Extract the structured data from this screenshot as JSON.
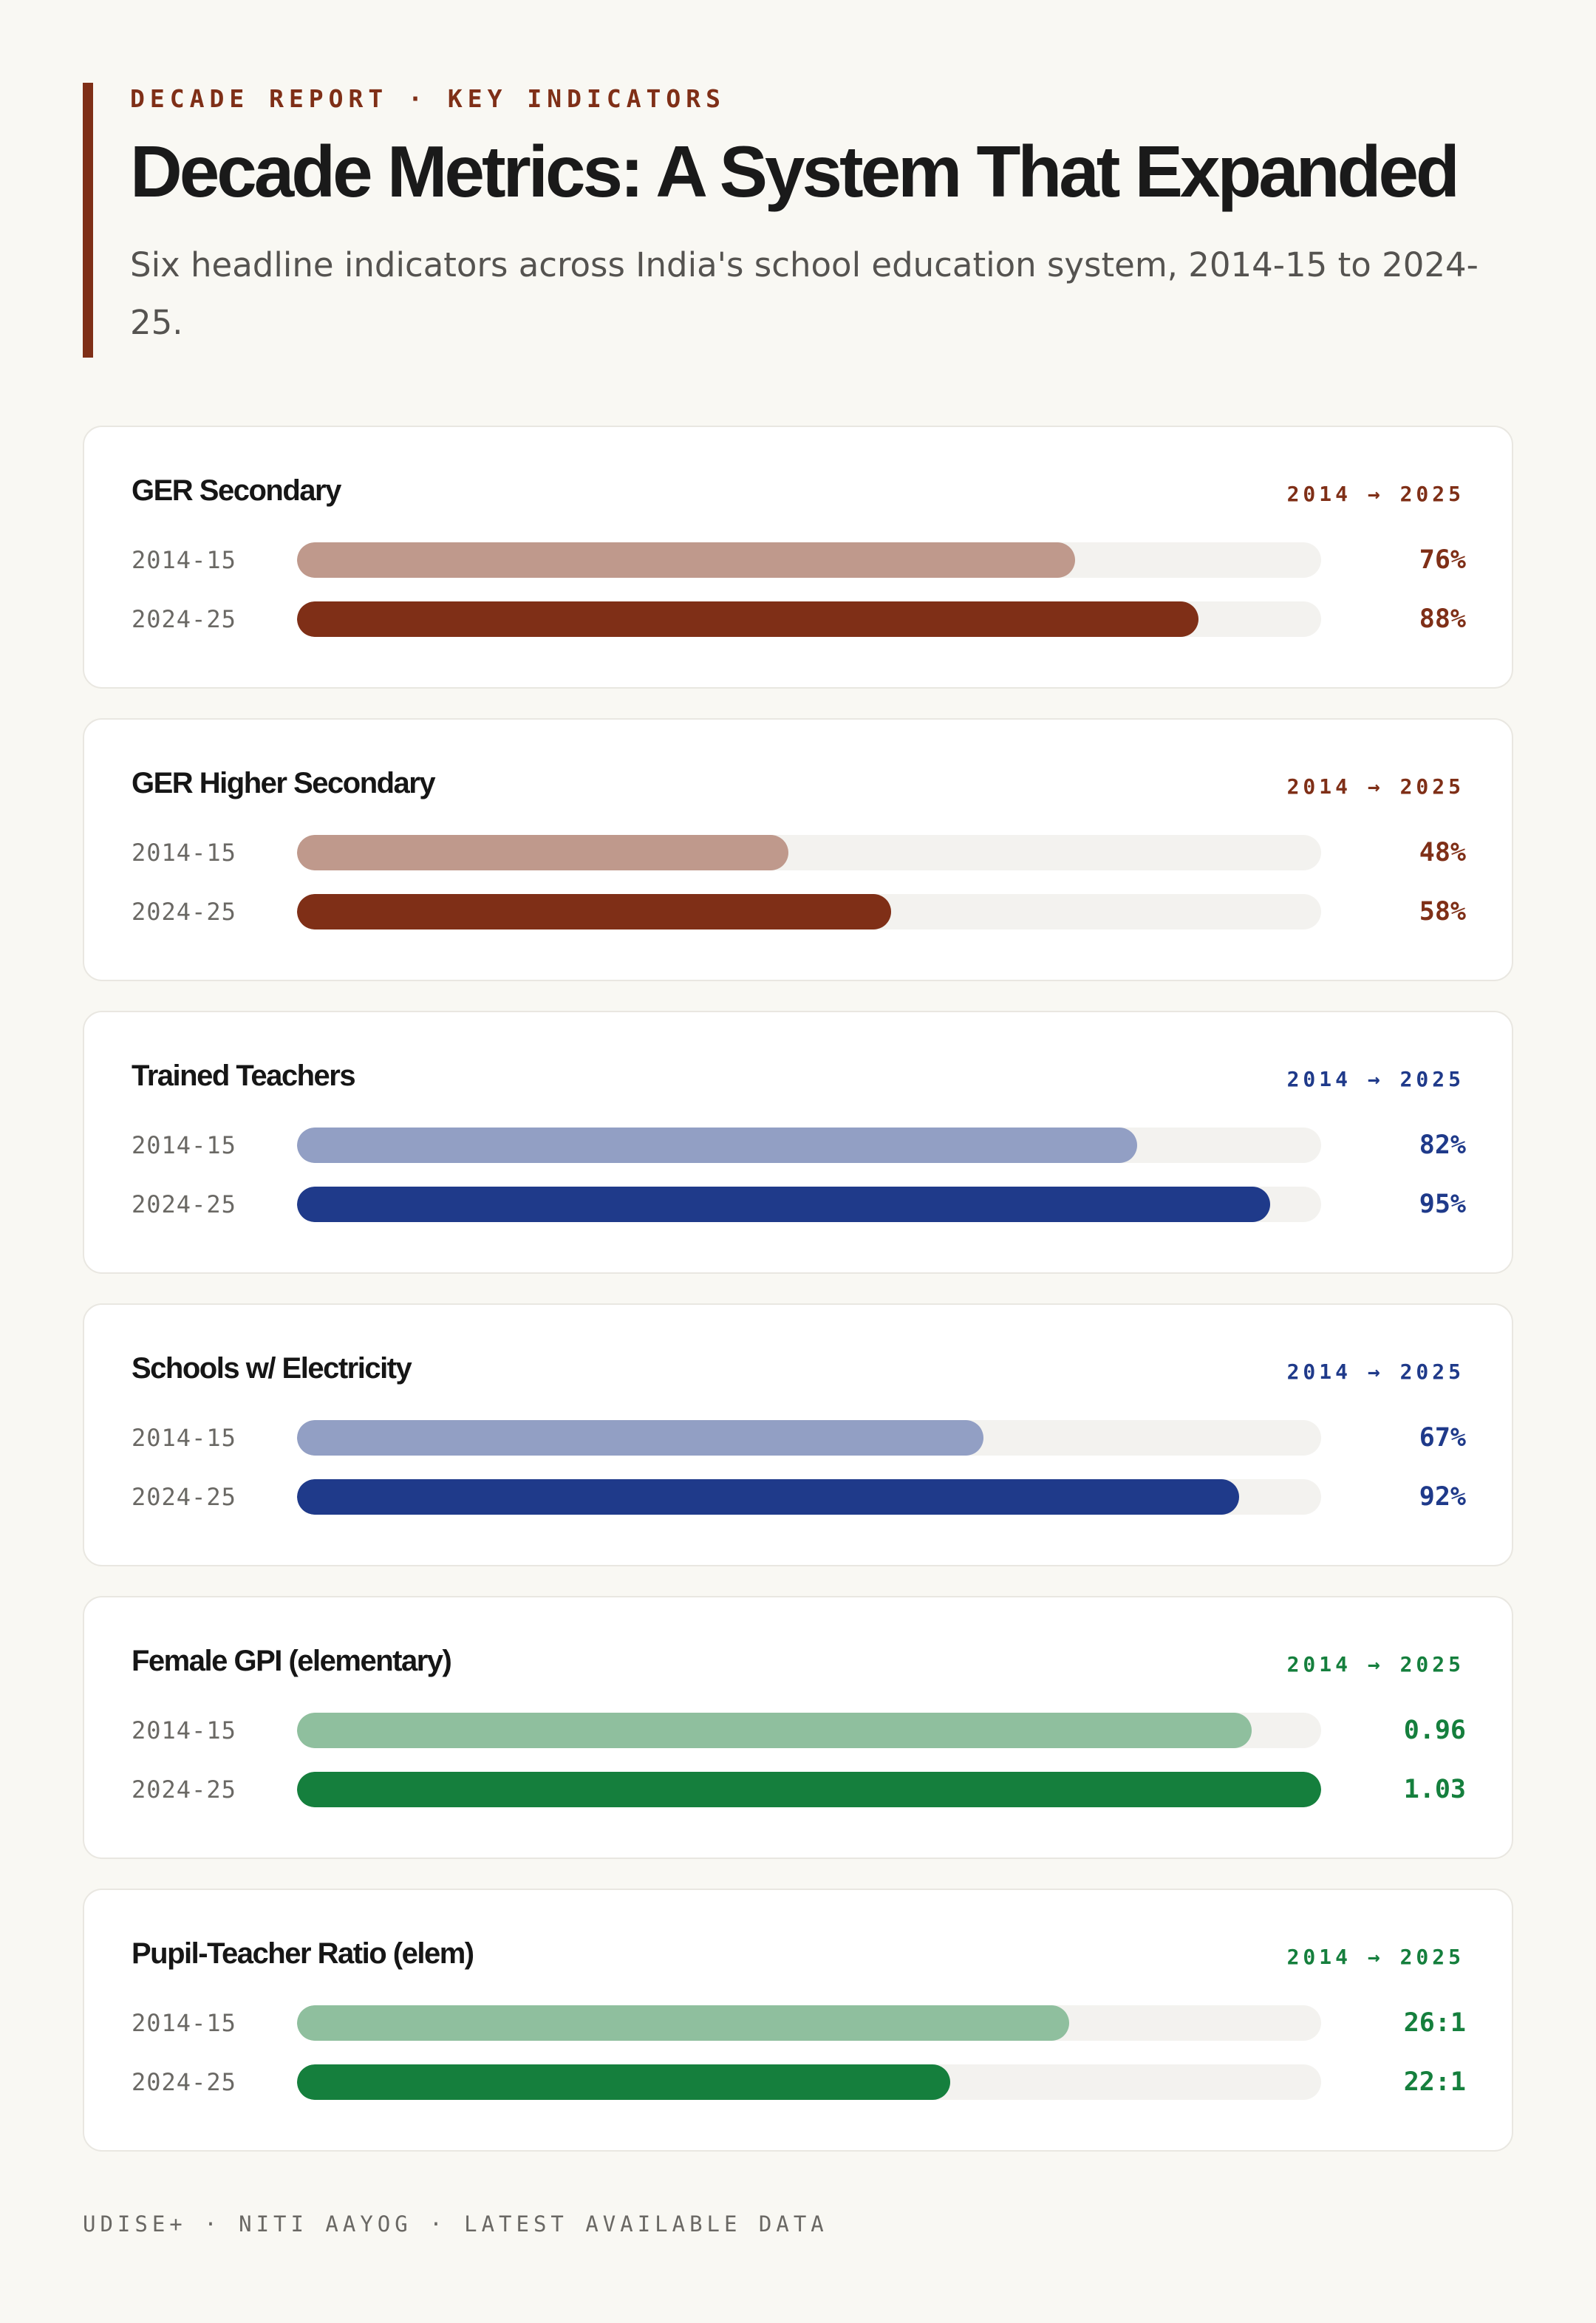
{
  "header": {
    "eyebrow": "DECADE REPORT · KEY INDICATORS",
    "title": "Decade Metrics: A System That Expanded",
    "subtitle": "Six headline indicators across India's school education system, 2014-15 to 2024-25."
  },
  "footer": {
    "source": "UDISE+ · NITI AAYOG · LATEST AVAILABLE DATA"
  },
  "colors": {
    "accent": "#7f2f17",
    "background": "#f9f8f3",
    "track": "#f3f2ef"
  },
  "chart_data": [
    {
      "type": "bar",
      "title": "GER Secondary",
      "range_label": "2014 → 2025",
      "categories": [
        "2014-15",
        "2024-25"
      ],
      "values": [
        76,
        88
      ],
      "value_labels": [
        "76%",
        "88%"
      ],
      "xlim": [
        0,
        100
      ],
      "color": "#7f2f17",
      "light_color": "#bf998c"
    },
    {
      "type": "bar",
      "title": "GER Higher Secondary",
      "range_label": "2014 → 2025",
      "categories": [
        "2014-15",
        "2024-25"
      ],
      "values": [
        48,
        58
      ],
      "value_labels": [
        "48%",
        "58%"
      ],
      "xlim": [
        0,
        100
      ],
      "color": "#7f2f17",
      "light_color": "#bf998c"
    },
    {
      "type": "bar",
      "title": "Trained Teachers",
      "range_label": "2014 → 2025",
      "categories": [
        "2014-15",
        "2024-25"
      ],
      "values": [
        82,
        95
      ],
      "value_labels": [
        "82%",
        "95%"
      ],
      "xlim": [
        0,
        100
      ],
      "color": "#1f3a8a",
      "light_color": "#929fc4"
    },
    {
      "type": "bar",
      "title": "Schools w/ Electricity",
      "range_label": "2014 → 2025",
      "categories": [
        "2014-15",
        "2024-25"
      ],
      "values": [
        67,
        92
      ],
      "value_labels": [
        "67%",
        "92%"
      ],
      "xlim": [
        0,
        100
      ],
      "color": "#1f3a8a",
      "light_color": "#929fc4"
    },
    {
      "type": "bar",
      "title": "Female GPI (elementary)",
      "range_label": "2014 → 2025",
      "categories": [
        "2014-15",
        "2024-25"
      ],
      "values": [
        0.96,
        1.03
      ],
      "value_labels": [
        "0.96",
        "1.03"
      ],
      "xlim": [
        0,
        1.03
      ],
      "color": "#157f3d",
      "light_color": "#8fbf9e"
    },
    {
      "type": "bar",
      "title": "Pupil-Teacher Ratio (elem)",
      "range_label": "2014 → 2025",
      "categories": [
        "2014-15",
        "2024-25"
      ],
      "values": [
        26,
        22
      ],
      "value_labels": [
        "26:1",
        "22:1"
      ],
      "xlim": [
        0,
        34.5
      ],
      "color": "#157f3d",
      "light_color": "#8fbf9e"
    }
  ]
}
